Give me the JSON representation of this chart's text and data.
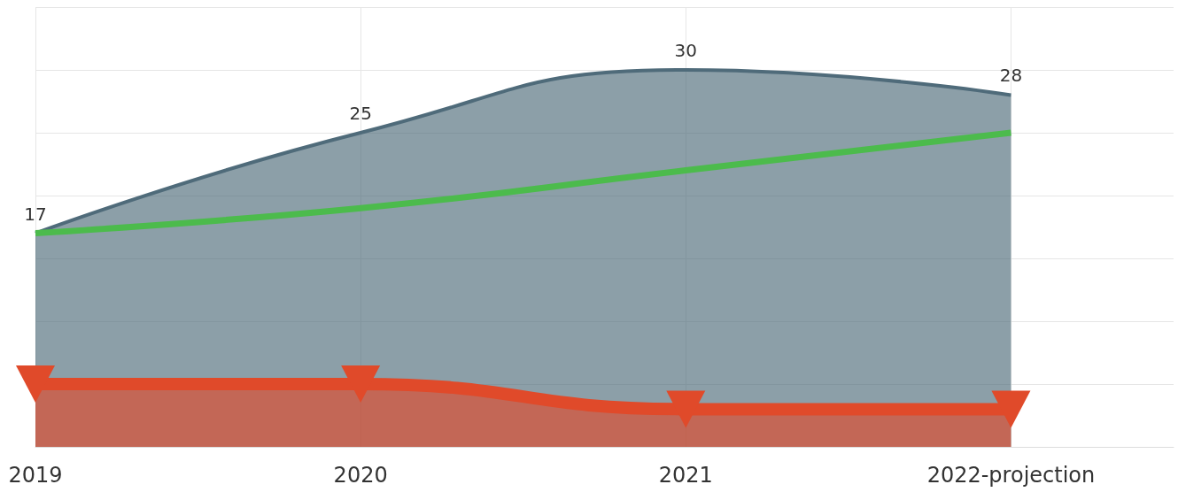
{
  "chart_data": {
    "type": "area",
    "categories": [
      "2019",
      "2020",
      "2021",
      "2022-projection"
    ],
    "series": [
      {
        "color": "#4f6b7a",
        "values": [
          17,
          25,
          30,
          28
        ],
        "value_labels": [
          "17",
          "25",
          "30",
          "28"
        ],
        "marker": "none"
      },
      {
        "type": "line",
        "color": "#4cbb4c",
        "values": [
          17,
          19,
          22,
          25
        ],
        "marker": "none"
      },
      {
        "color": "#e04a2a",
        "values": [
          5,
          5,
          3,
          3
        ],
        "marker": "triangle"
      }
    ],
    "ylim": [
      0,
      35
    ],
    "yticks": [
      {
        "value": 0,
        "label": null
      },
      {
        "value": 5,
        "label": null
      },
      {
        "value": 10,
        "label": null
      },
      {
        "value": 15,
        "label": null
      },
      {
        "value": 20,
        "label": null
      },
      {
        "value": 25,
        "label": null
      },
      {
        "value": 30,
        "label": null
      },
      {
        "value": 35,
        "label": null
      }
    ],
    "tick_labels": "x",
    "grid": true
  }
}
